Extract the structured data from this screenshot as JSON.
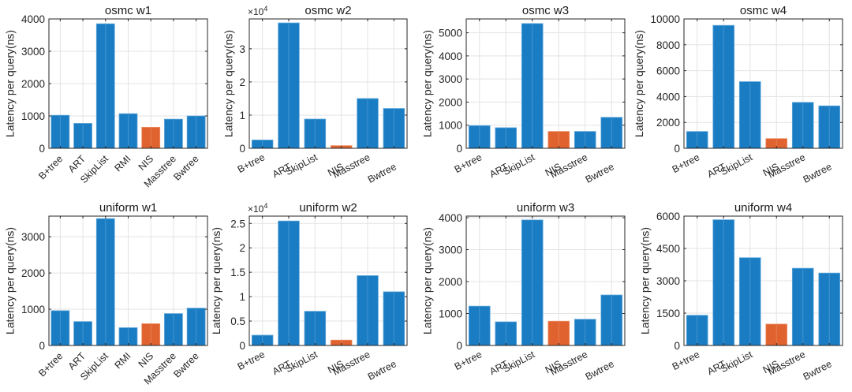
{
  "colors": {
    "bar": "#1a7dc4",
    "bar_edge": "#5ea6da",
    "highlight": "#e0622e",
    "highlight_edge": "#ec8f66",
    "axis": "#262626",
    "grid": "#e3e3e3"
  },
  "chart_data": [
    {
      "type": "bar",
      "title": "osmc w1",
      "xlabel": "",
      "ylabel": "Latency per query(ns)",
      "categories": [
        "B+tree",
        "ART",
        "SkipList",
        "RMI",
        "NIS",
        "Masstree",
        "Bwtree"
      ],
      "values": [
        1020,
        770,
        3850,
        1070,
        650,
        900,
        1000
      ],
      "highlight": "NIS",
      "ylim": [
        0,
        4000
      ],
      "yticks": [
        0,
        1000,
        2000,
        3000,
        4000
      ],
      "ytick_labels": [
        "0",
        "1000",
        "2000",
        "3000",
        "4000"
      ],
      "exponent_label": "",
      "grid": true,
      "legend": "none"
    },
    {
      "type": "bar",
      "title": "osmc w2",
      "xlabel": "",
      "ylabel": "Latency per query(ns)",
      "categories": [
        "B+tree",
        "ART",
        "SkipList",
        "NIS",
        "Masstree",
        "Bwtree"
      ],
      "values": [
        2500,
        37800,
        8800,
        800,
        15000,
        12000
      ],
      "highlight": "NIS",
      "ylim": [
        0,
        39000
      ],
      "yticks": [
        0,
        10000,
        20000,
        30000
      ],
      "ytick_labels": [
        "0",
        "1",
        "2",
        "3"
      ],
      "exponent_label": "×10",
      "exponent_power": "4",
      "grid": true,
      "legend": "none"
    },
    {
      "type": "bar",
      "title": "osmc w3",
      "xlabel": "",
      "ylabel": "Latency per query(ns)",
      "categories": [
        "B+tree",
        "ART",
        "SkipList",
        "NIS",
        "Masstree",
        "Bwtree"
      ],
      "values": [
        980,
        890,
        5400,
        730,
        730,
        1340
      ],
      "highlight": "NIS",
      "ylim": [
        0,
        5600
      ],
      "yticks": [
        0,
        1000,
        2000,
        3000,
        4000,
        5000
      ],
      "ytick_labels": [
        "0",
        "1000",
        "2000",
        "3000",
        "4000",
        "5000"
      ],
      "exponent_label": "",
      "grid": true,
      "legend": "none"
    },
    {
      "type": "bar",
      "title": "osmc w4",
      "xlabel": "",
      "ylabel": "Latency per query(ns)",
      "categories": [
        "B+tree",
        "ART",
        "SkipList",
        "NIS",
        "Masstree",
        "Bwtree"
      ],
      "values": [
        1300,
        9500,
        5150,
        750,
        3550,
        3280
      ],
      "highlight": "NIS",
      "ylim": [
        0,
        10000
      ],
      "yticks": [
        0,
        2000,
        4000,
        6000,
        8000,
        10000
      ],
      "ytick_labels": [
        "0",
        "2000",
        "4000",
        "6000",
        "8000",
        "10000"
      ],
      "exponent_label": "",
      "grid": true,
      "legend": "none"
    },
    {
      "type": "bar",
      "title": "uniform w1",
      "xlabel": "",
      "ylabel": "Latency per query(ns)",
      "categories": [
        "B+tree",
        "ART",
        "SkipList",
        "RMI",
        "NIS",
        "Masstree",
        "Bwtree"
      ],
      "values": [
        960,
        660,
        3500,
        490,
        600,
        880,
        1030
      ],
      "highlight": "NIS",
      "ylim": [
        0,
        3570
      ],
      "yticks": [
        0,
        1000,
        2000,
        3000
      ],
      "ytick_labels": [
        "0",
        "1000",
        "2000",
        "3000"
      ],
      "exponent_label": "",
      "grid": true,
      "legend": "none"
    },
    {
      "type": "bar",
      "title": "uniform w2",
      "xlabel": "",
      "ylabel": "Latency per query(ns)",
      "categories": [
        "B+tree",
        "ART",
        "SkipList",
        "NIS",
        "Masstree",
        "Bwtree"
      ],
      "values": [
        2100,
        25500,
        7000,
        1100,
        14300,
        11000
      ],
      "highlight": "NIS",
      "ylim": [
        0,
        26500
      ],
      "yticks": [
        0,
        5000,
        10000,
        15000,
        20000,
        25000
      ],
      "ytick_labels": [
        "0",
        "0.5",
        "1",
        "1.5",
        "2",
        "2.5"
      ],
      "exponent_label": "×10",
      "exponent_power": "4",
      "grid": true,
      "legend": "none"
    },
    {
      "type": "bar",
      "title": "uniform w3",
      "xlabel": "",
      "ylabel": "Latency per query(ns)",
      "categories": [
        "B+tree",
        "ART",
        "SkipList",
        "NIS",
        "Masstree",
        "Bwtree"
      ],
      "values": [
        1230,
        740,
        3930,
        760,
        820,
        1580
      ],
      "highlight": "NIS",
      "ylim": [
        0,
        4050
      ],
      "yticks": [
        0,
        1000,
        2000,
        3000,
        4000
      ],
      "ytick_labels": [
        "0",
        "1000",
        "2000",
        "3000",
        "4000"
      ],
      "exponent_label": "",
      "grid": true,
      "legend": "none"
    },
    {
      "type": "bar",
      "title": "uniform w4",
      "xlabel": "",
      "ylabel": "Latency per query(ns)",
      "categories": [
        "B+tree",
        "ART",
        "SkipList",
        "NIS",
        "Masstree",
        "Bwtree"
      ],
      "values": [
        1400,
        5830,
        4070,
        990,
        3580,
        3360
      ],
      "highlight": "NIS",
      "ylim": [
        0,
        6000
      ],
      "yticks": [
        0,
        1500,
        3000,
        4500,
        6000
      ],
      "ytick_labels": [
        "0",
        "1500",
        "3000",
        "4500",
        "6000"
      ],
      "exponent_label": "",
      "grid": true,
      "legend": "none"
    }
  ]
}
